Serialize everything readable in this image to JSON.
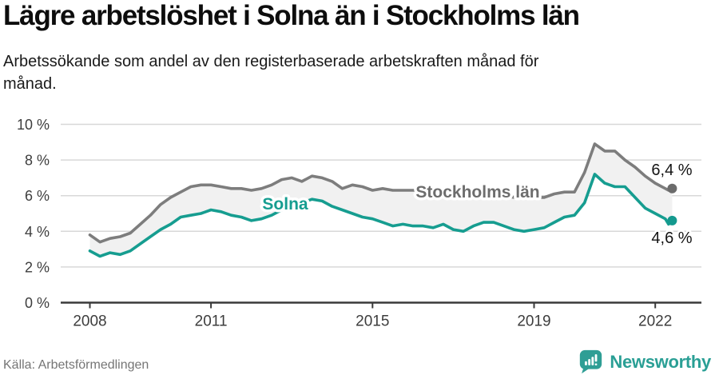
{
  "header": {
    "title": "Lägre arbetslöshet i Solna än i Stockholms län",
    "subtitle": "Arbetssökande som andel av den registerbaserade arbetskraften månad för månad.",
    "subtitle_lines": [
      "Arbetssökande som andel av den registerbaserade arbetskraften månad för",
      "månad."
    ]
  },
  "footer": {
    "source": "Källa: Arbetsförmedlingen",
    "brand": "Newsworthy",
    "brand_color": "#2a9f95",
    "logo_icon": "bar-chart-speech-bubble"
  },
  "chart_data": {
    "type": "line",
    "title": "Lägre arbetslöshet i Solna än i Stockholms län",
    "subtitle": "Arbetssökande som andel av den registerbaserade arbetskraften månad för månad.",
    "xlabel": "",
    "ylabel": "",
    "xlim": [
      2007.9,
      2022.6
    ],
    "ylim": [
      0,
      10
    ],
    "grid": "horizontal",
    "legend_position": "inline-labels",
    "y_ticks": [
      {
        "v": 10,
        "label": "10 %"
      },
      {
        "v": 8,
        "label": "8 %"
      },
      {
        "v": 6,
        "label": "6 %"
      },
      {
        "v": 4,
        "label": "4 %"
      },
      {
        "v": 2,
        "label": "2 %"
      },
      {
        "v": 0,
        "label": "0 %"
      }
    ],
    "x_ticks": [
      {
        "x": 2008,
        "label": "2008"
      },
      {
        "x": 2011,
        "label": "2011"
      },
      {
        "x": 2015,
        "label": "2015"
      },
      {
        "x": 2019,
        "label": "2019"
      },
      {
        "x": 2022,
        "label": "2022"
      }
    ],
    "colors": {
      "grid": "#d8d8d8",
      "axis": "#3a3a3a",
      "tick_text": "#3d3d3d",
      "band": "#f1f1f1",
      "end_label_text": "#141414"
    },
    "x": [
      2008.0,
      2008.25,
      2008.5,
      2008.75,
      2009.0,
      2009.25,
      2009.5,
      2009.75,
      2010.0,
      2010.25,
      2010.5,
      2010.75,
      2011.0,
      2011.25,
      2011.5,
      2011.75,
      2012.0,
      2012.25,
      2012.5,
      2012.75,
      2013.0,
      2013.25,
      2013.5,
      2013.75,
      2014.0,
      2014.25,
      2014.5,
      2014.75,
      2015.0,
      2015.25,
      2015.5,
      2015.75,
      2016.0,
      2016.25,
      2016.5,
      2016.75,
      2017.0,
      2017.25,
      2017.5,
      2017.75,
      2018.0,
      2018.25,
      2018.5,
      2018.75,
      2019.0,
      2019.25,
      2019.5,
      2019.75,
      2020.0,
      2020.25,
      2020.5,
      2020.75,
      2021.0,
      2021.25,
      2021.5,
      2021.75,
      2022.0,
      2022.25,
      2022.33,
      2022.42
    ],
    "series": [
      {
        "name": "Stockholms län",
        "color": "#7d7d7d",
        "label_color": "#6d6d6d",
        "dot_color": "#6b6b6b",
        "end_label": "6,4 %",
        "end_value": 6.4,
        "values": [
          3.8,
          3.4,
          3.6,
          3.7,
          3.9,
          4.4,
          4.9,
          5.5,
          5.9,
          6.2,
          6.5,
          6.6,
          6.6,
          6.5,
          6.4,
          6.4,
          6.3,
          6.4,
          6.6,
          6.9,
          7.0,
          6.8,
          7.1,
          7.0,
          6.8,
          6.4,
          6.6,
          6.5,
          6.3,
          6.4,
          6.3,
          6.3,
          6.3,
          6.3,
          6.2,
          6.2,
          6.2,
          6.1,
          6.1,
          6.1,
          6.0,
          6.0,
          5.9,
          5.9,
          5.9,
          5.9,
          6.1,
          6.2,
          6.2,
          7.3,
          8.9,
          8.5,
          8.5,
          8.0,
          7.6,
          7.1,
          6.7,
          6.4,
          6.3,
          6.4
        ]
      },
      {
        "name": "Solna",
        "color": "#169d90",
        "label_color": "#169d90",
        "dot_color": "#14998e",
        "end_label": "4,6 %",
        "end_value": 4.6,
        "values": [
          2.9,
          2.6,
          2.8,
          2.7,
          2.9,
          3.3,
          3.7,
          4.1,
          4.4,
          4.8,
          4.9,
          5.0,
          5.2,
          5.1,
          4.9,
          4.8,
          4.6,
          4.7,
          4.9,
          5.2,
          5.4,
          5.6,
          5.8,
          5.7,
          5.4,
          5.2,
          5.0,
          4.8,
          4.7,
          4.5,
          4.3,
          4.4,
          4.3,
          4.3,
          4.2,
          4.4,
          4.1,
          4.0,
          4.3,
          4.5,
          4.5,
          4.3,
          4.1,
          4.0,
          4.1,
          4.2,
          4.5,
          4.8,
          4.9,
          5.6,
          7.2,
          6.7,
          6.5,
          6.5,
          5.9,
          5.3,
          5.0,
          4.7,
          4.4,
          4.6
        ]
      }
    ]
  }
}
